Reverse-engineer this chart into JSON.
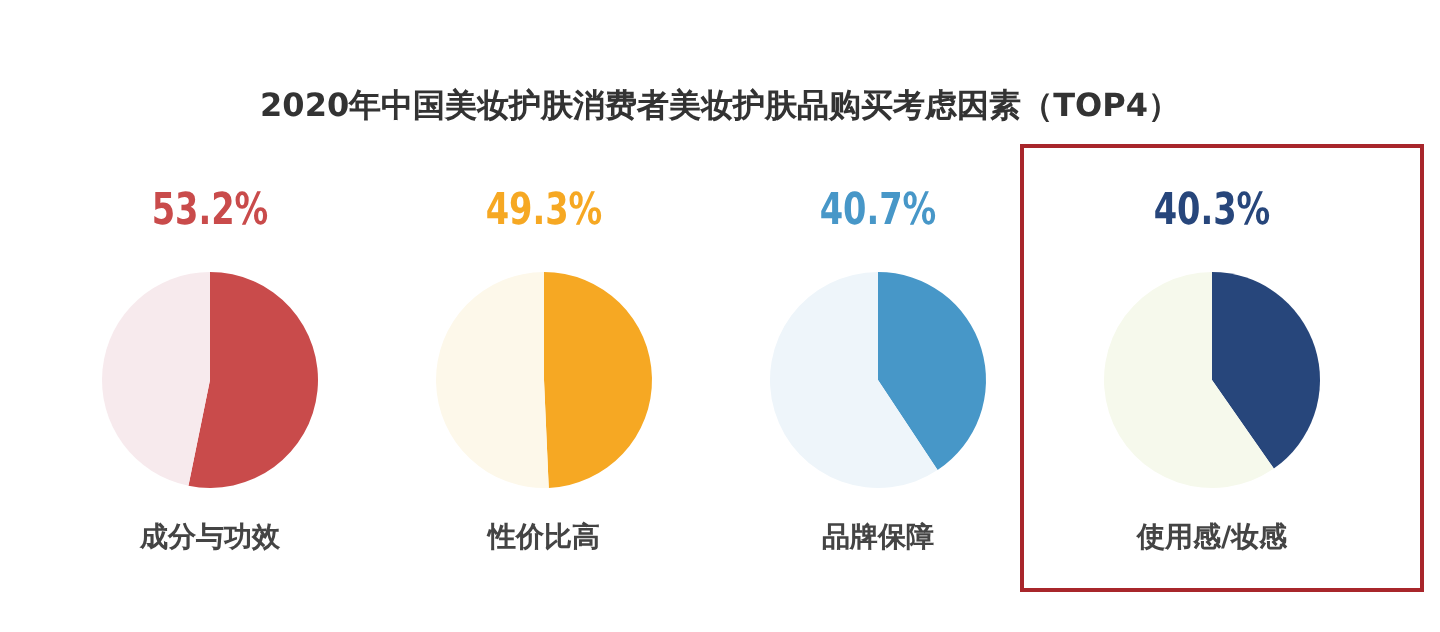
{
  "chart_data": [
    {
      "type": "other",
      "title": "2020年中国美妆护肤消费者美妆护肤品购买考虑因素（TOP4）"
    },
    {
      "type": "pie",
      "title": "成分与功效",
      "categories": [
        null,
        null
      ],
      "values": [
        53.2,
        46.8
      ],
      "colors": [
        "#c94b4b",
        "#f7eaed"
      ],
      "value_labels": [
        "53.2%",
        null
      ]
    },
    {
      "type": "pie",
      "title": "性价比高",
      "categories": [
        null,
        null
      ],
      "values": [
        49.3,
        50.7
      ],
      "colors": [
        "#f6a823",
        "#fdf8ea"
      ],
      "value_labels": [
        "49.3%",
        null
      ]
    },
    {
      "type": "pie",
      "title": "品牌保障",
      "categories": [
        null,
        null
      ],
      "values": [
        40.7,
        59.3
      ],
      "colors": [
        "#4797c8",
        "#eef5fa"
      ],
      "value_labels": [
        "40.7%",
        null
      ]
    },
    {
      "type": "pie",
      "title": "使用感/妆感",
      "categories": [
        null,
        null
      ],
      "values": [
        40.3,
        59.7
      ],
      "colors": [
        "#27467b",
        "#f6f9ec"
      ],
      "value_labels": [
        "40.3%",
        null
      ]
    }
  ]
}
